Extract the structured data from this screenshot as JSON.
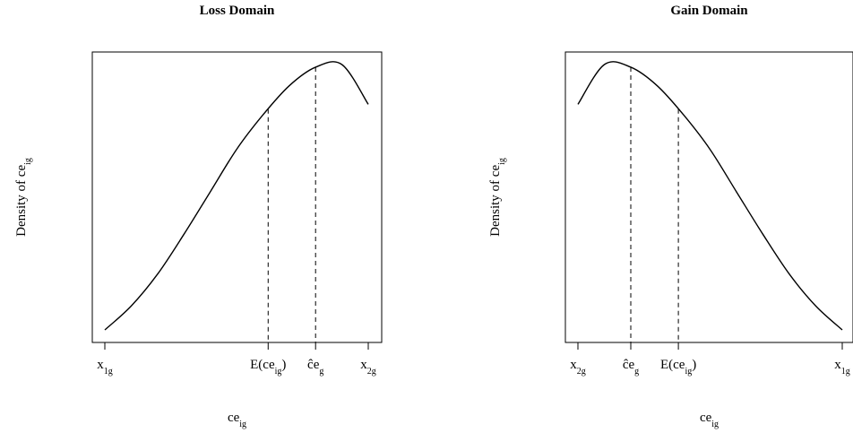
{
  "chart_data": [
    {
      "type": "line",
      "title": "Loss Domain",
      "xlabel": {
        "base": "ce",
        "sub": "ig"
      },
      "ylabel": {
        "text": "Density of ce",
        "sub": "ig"
      },
      "curve": {
        "shape": "density",
        "x": [
          0,
          0.1,
          0.2,
          0.3,
          0.4,
          0.5,
          0.6,
          0.7,
          0.8,
          0.9,
          1.0
        ],
        "y": [
          0.0,
          0.09,
          0.21,
          0.36,
          0.52,
          0.68,
          0.81,
          0.92,
          0.99,
          1.0,
          0.85
        ]
      },
      "ticks": [
        {
          "x": 0.0,
          "base": "x",
          "sub": "1g",
          "hat": false,
          "suffix": ""
        },
        {
          "x": 0.62,
          "base": "E(ce",
          "sub": "ig",
          "hat": false,
          "suffix": ")"
        },
        {
          "x": 0.8,
          "base": "ce",
          "sub": "g",
          "hat": true,
          "suffix": ""
        },
        {
          "x": 1.0,
          "base": "x",
          "sub": "2g",
          "hat": false,
          "suffix": ""
        }
      ],
      "vlines": [
        {
          "x": 0.62,
          "style": "dashed"
        },
        {
          "x": 0.8,
          "style": "dashed"
        }
      ],
      "grid": false,
      "legend": "none"
    },
    {
      "type": "line",
      "title": "Gain Domain",
      "xlabel": {
        "base": "ce",
        "sub": "ig"
      },
      "ylabel": {
        "text": "Density of ce",
        "sub": "ig"
      },
      "curve": {
        "shape": "density",
        "x": [
          0,
          0.1,
          0.2,
          0.3,
          0.4,
          0.5,
          0.6,
          0.7,
          0.8,
          0.9,
          1.0
        ],
        "y": [
          0.85,
          1.0,
          0.99,
          0.92,
          0.81,
          0.68,
          0.52,
          0.36,
          0.21,
          0.09,
          0.0
        ]
      },
      "ticks": [
        {
          "x": 0.0,
          "base": "x",
          "sub": "2g",
          "hat": false,
          "suffix": ""
        },
        {
          "x": 0.2,
          "base": "ce",
          "sub": "g",
          "hat": true,
          "suffix": ""
        },
        {
          "x": 0.38,
          "base": "E(ce",
          "sub": "ig",
          "hat": false,
          "suffix": ")"
        },
        {
          "x": 1.0,
          "base": "x",
          "sub": "1g",
          "hat": false,
          "suffix": ""
        }
      ],
      "vlines": [
        {
          "x": 0.2,
          "style": "dashed"
        },
        {
          "x": 0.38,
          "style": "dashed"
        }
      ],
      "grid": false,
      "legend": "none"
    }
  ]
}
